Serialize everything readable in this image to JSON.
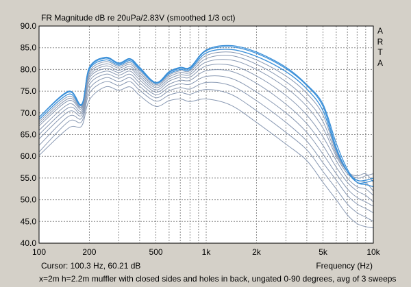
{
  "title": "FR Magnitude dB re 20uPa/2.83V (smoothed 1/3 oct)",
  "brand_letters": [
    "A",
    "R",
    "T",
    "A"
  ],
  "cursor_readout": "Cursor: 100.3 Hz, 60.21 dB",
  "x_axis_label": "Frequency (Hz)",
  "footnote": "x=2m h=2.2m muffler with closed sides and holes in back, ungated 0-90 degrees, avg of 3 sweeps",
  "colors": {
    "background": "#d4d0c8",
    "plot_area": "#ffffff",
    "grid": "#8a8a8a",
    "on_axis": "#3a8fd8",
    "off_axis": "#8898b2"
  },
  "chart_data": {
    "type": "line",
    "title": "FR Magnitude dB re 20uPa/2.83V (smoothed 1/3 oct)",
    "xlabel": "Frequency (Hz)",
    "ylabel": "",
    "x_scale": "log",
    "xlim": [
      100,
      10000
    ],
    "ylim": [
      40,
      90
    ],
    "grid": true,
    "x_tick_labels": [
      "100",
      "200",
      "500",
      "1k",
      "2k",
      "5k",
      "10k"
    ],
    "x_tick_values": [
      100,
      200,
      500,
      1000,
      2000,
      5000,
      10000
    ],
    "y_tick_labels": [
      "40.0",
      "45.0",
      "50.0",
      "55.0",
      "60.0",
      "65.0",
      "70.0",
      "75.0",
      "80.0",
      "85.0",
      "90.0"
    ],
    "y_tick_values": [
      40,
      45,
      50,
      55,
      60,
      65,
      70,
      75,
      80,
      85,
      90
    ],
    "x": [
      100,
      150,
      180,
      200,
      250,
      300,
      350,
      400,
      500,
      600,
      700,
      800,
      1000,
      1400,
      2000,
      3000,
      4000,
      5000,
      6000,
      7000,
      8000,
      9000,
      10000
    ],
    "series": [
      {
        "values": [
          69.0,
          75.0,
          72.0,
          80.5,
          82.8,
          81.5,
          82.5,
          80.5,
          77.0,
          79.5,
          80.5,
          80.5,
          84.5,
          85.5,
          84.0,
          80.5,
          76.5,
          72.0,
          63.0,
          57.0,
          54.0,
          53.5,
          53.0
        ]
      },
      {
        "values": [
          69.0,
          74.8,
          72.0,
          80.3,
          82.6,
          81.3,
          82.3,
          80.3,
          77.0,
          79.3,
          80.3,
          80.3,
          84.3,
          85.2,
          83.7,
          80.2,
          76.3,
          71.5,
          62.0,
          56.5,
          54.0,
          54.0,
          54.5
        ]
      },
      {
        "values": [
          68.5,
          74.3,
          71.8,
          80.0,
          82.2,
          81.0,
          82.0,
          80.0,
          76.8,
          79.0,
          80.0,
          80.0,
          83.8,
          84.6,
          83.0,
          79.5,
          75.5,
          70.5,
          61.5,
          56.5,
          54.5,
          54.5,
          55.0
        ]
      },
      {
        "values": [
          68.0,
          73.8,
          71.5,
          79.5,
          81.8,
          80.7,
          81.6,
          79.6,
          76.5,
          78.7,
          79.7,
          79.7,
          83.2,
          84.0,
          82.2,
          78.5,
          74.5,
          69.5,
          61.0,
          56.5,
          55.0,
          55.5,
          56.0
        ]
      },
      {
        "values": [
          67.5,
          73.3,
          71.3,
          79.0,
          81.3,
          80.3,
          81.2,
          79.2,
          76.2,
          78.3,
          79.3,
          79.3,
          82.5,
          83.2,
          81.2,
          77.2,
          73.0,
          68.0,
          60.5,
          56.5,
          55.5,
          56.0,
          54.0
        ]
      },
      {
        "values": [
          67.0,
          72.8,
          71.0,
          78.5,
          80.8,
          79.8,
          80.7,
          78.7,
          75.8,
          77.8,
          78.8,
          78.8,
          81.7,
          82.2,
          80.0,
          75.8,
          71.5,
          66.5,
          60.0,
          56.0,
          54.5,
          54.0,
          52.0
        ]
      },
      {
        "values": [
          66.0,
          72.0,
          70.5,
          78.0,
          80.2,
          79.3,
          80.2,
          78.2,
          75.3,
          77.3,
          78.2,
          78.2,
          80.8,
          81.0,
          78.5,
          74.0,
          69.5,
          64.5,
          59.0,
          55.0,
          53.0,
          52.5,
          51.0
        ]
      },
      {
        "values": [
          65.0,
          71.2,
          70.0,
          77.3,
          79.6,
          78.7,
          79.6,
          77.6,
          74.8,
          76.6,
          77.5,
          77.5,
          79.7,
          79.6,
          76.8,
          72.0,
          67.5,
          62.5,
          57.5,
          54.0,
          52.0,
          51.0,
          49.5
        ]
      },
      {
        "values": [
          64.0,
          70.3,
          69.5,
          76.5,
          78.9,
          78.0,
          78.9,
          76.9,
          74.2,
          75.9,
          76.7,
          76.6,
          78.4,
          78.0,
          74.8,
          70.0,
          65.5,
          60.5,
          56.0,
          52.5,
          50.5,
          49.5,
          48.5
        ]
      },
      {
        "values": [
          62.5,
          69.2,
          68.8,
          75.5,
          78.1,
          77.2,
          78.1,
          76.1,
          73.5,
          75.1,
          75.8,
          75.5,
          77.0,
          76.3,
          72.8,
          67.8,
          63.5,
          58.5,
          54.5,
          51.0,
          49.0,
          48.0,
          47.0
        ]
      },
      {
        "values": [
          61.0,
          68.0,
          68.0,
          74.5,
          77.2,
          76.3,
          77.2,
          75.2,
          72.7,
          74.1,
          74.7,
          74.3,
          75.4,
          74.3,
          70.5,
          65.5,
          61.5,
          56.5,
          52.5,
          49.0,
          47.0,
          46.0,
          45.0
        ]
      },
      {
        "values": [
          60.2,
          66.5,
          67.0,
          73.0,
          76.0,
          75.2,
          76.0,
          74.0,
          71.5,
          72.8,
          73.2,
          72.6,
          73.2,
          71.8,
          67.8,
          62.8,
          59.0,
          54.0,
          50.0,
          46.5,
          44.5,
          43.8,
          43.5
        ]
      }
    ]
  }
}
